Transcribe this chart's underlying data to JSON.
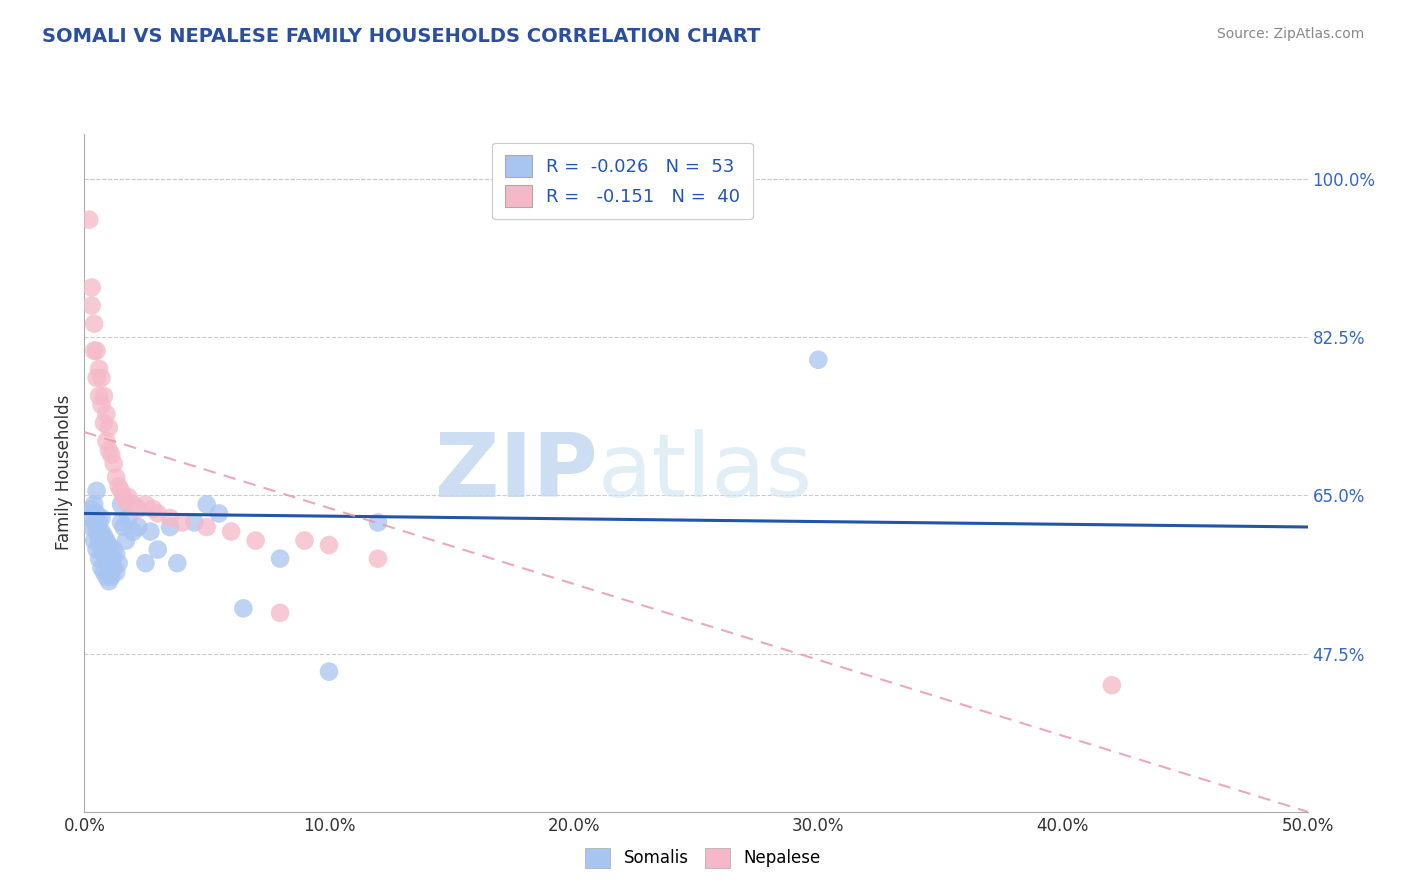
{
  "title": "SOMALI VS NEPALESE FAMILY HOUSEHOLDS CORRELATION CHART",
  "source": "Source: ZipAtlas.com",
  "ylabel": "Family Households",
  "xlim": [
    0.0,
    0.5
  ],
  "ylim": [
    0.3,
    1.05
  ],
  "yticks": [
    0.475,
    0.65,
    0.825,
    1.0
  ],
  "ytick_labels": [
    "47.5%",
    "65.0%",
    "82.5%",
    "100.0%"
  ],
  "xticks": [
    0.0,
    0.1,
    0.2,
    0.3,
    0.4,
    0.5
  ],
  "xtick_labels": [
    "0.0%",
    "10.0%",
    "20.0%",
    "30.0%",
    "40.0%",
    "50.0%"
  ],
  "somali_R": "-0.026",
  "somali_N": "53",
  "nepalese_R": "-0.151",
  "nepalese_N": "40",
  "somali_color": "#A8C4F0",
  "nepalese_color": "#F5B8C8",
  "somali_line_color": "#2255AA",
  "nepalese_line_color": "#E89AAA",
  "watermark_zip": "ZIP",
  "watermark_atlas": "atlas",
  "background_color": "#ffffff",
  "grid_color": "#cccccc",
  "somali_x": [
    0.002,
    0.003,
    0.003,
    0.004,
    0.004,
    0.004,
    0.005,
    0.005,
    0.005,
    0.005,
    0.006,
    0.006,
    0.006,
    0.007,
    0.007,
    0.007,
    0.007,
    0.008,
    0.008,
    0.008,
    0.009,
    0.009,
    0.009,
    0.01,
    0.01,
    0.01,
    0.011,
    0.011,
    0.012,
    0.012,
    0.013,
    0.013,
    0.014,
    0.015,
    0.015,
    0.016,
    0.017,
    0.018,
    0.02,
    0.022,
    0.025,
    0.027,
    0.03,
    0.035,
    0.038,
    0.045,
    0.05,
    0.055,
    0.065,
    0.08,
    0.1,
    0.12,
    0.3
  ],
  "somali_y": [
    0.625,
    0.615,
    0.635,
    0.6,
    0.62,
    0.64,
    0.59,
    0.61,
    0.63,
    0.655,
    0.58,
    0.6,
    0.62,
    0.57,
    0.59,
    0.61,
    0.625,
    0.565,
    0.585,
    0.605,
    0.56,
    0.58,
    0.6,
    0.555,
    0.575,
    0.595,
    0.56,
    0.58,
    0.57,
    0.59,
    0.565,
    0.585,
    0.575,
    0.62,
    0.64,
    0.615,
    0.6,
    0.625,
    0.61,
    0.615,
    0.575,
    0.61,
    0.59,
    0.615,
    0.575,
    0.62,
    0.64,
    0.63,
    0.525,
    0.58,
    0.455,
    0.62,
    0.8
  ],
  "nepalese_x": [
    0.002,
    0.003,
    0.003,
    0.004,
    0.004,
    0.005,
    0.005,
    0.006,
    0.006,
    0.007,
    0.007,
    0.008,
    0.008,
    0.009,
    0.009,
    0.01,
    0.01,
    0.011,
    0.012,
    0.013,
    0.014,
    0.015,
    0.016,
    0.017,
    0.018,
    0.02,
    0.022,
    0.025,
    0.028,
    0.03,
    0.035,
    0.04,
    0.05,
    0.06,
    0.07,
    0.08,
    0.09,
    0.1,
    0.12,
    0.42
  ],
  "nepalese_y": [
    0.955,
    0.86,
    0.88,
    0.81,
    0.84,
    0.78,
    0.81,
    0.76,
    0.79,
    0.75,
    0.78,
    0.73,
    0.76,
    0.71,
    0.74,
    0.7,
    0.725,
    0.695,
    0.685,
    0.67,
    0.66,
    0.655,
    0.648,
    0.642,
    0.648,
    0.64,
    0.635,
    0.64,
    0.635,
    0.63,
    0.625,
    0.62,
    0.615,
    0.61,
    0.6,
    0.52,
    0.6,
    0.595,
    0.58,
    0.44
  ],
  "somali_line_x": [
    0.0,
    0.5
  ],
  "somali_line_y": [
    0.63,
    0.615
  ],
  "nepalese_line_x": [
    0.0,
    0.5
  ],
  "nepalese_line_y": [
    0.72,
    0.3
  ]
}
